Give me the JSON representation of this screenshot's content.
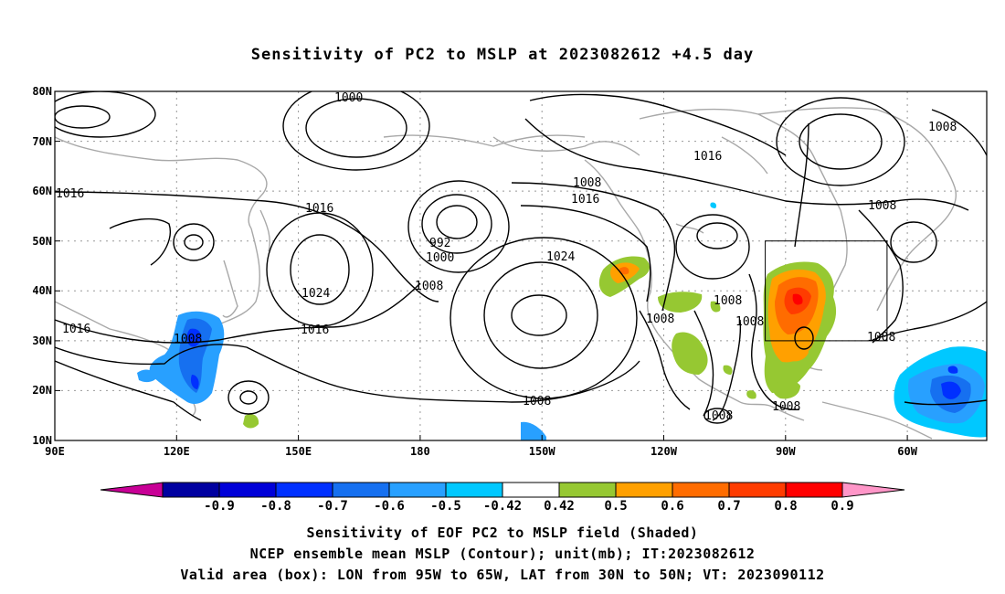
{
  "title": "Sensitivity of PC2 to MSLP at 2023082612 +4.5 day",
  "map": {
    "lat_labels": [
      "80N",
      "70N",
      "60N",
      "50N",
      "40N",
      "30N",
      "20N",
      "10N"
    ],
    "lon_labels": [
      "90E",
      "120E",
      "150E",
      "180",
      "150W",
      "120W",
      "90W",
      "60W"
    ],
    "contour_labels": [
      "1000",
      "992",
      "1000",
      "1008",
      "1008",
      "1016",
      "1016",
      "1016",
      "1024",
      "1024",
      "1016",
      "1016",
      "1008",
      "1008",
      "1008",
      "1008",
      "1008",
      "1008",
      "1008",
      "1008",
      "1008",
      "1008",
      "1016"
    ],
    "valid_box": {
      "lon_from": "95W",
      "lon_to": "65W",
      "lat_from": "30N",
      "lat_to": "50N"
    }
  },
  "colorbar": {
    "labels": [
      "-0.9",
      "-0.8",
      "-0.7",
      "-0.6",
      "-0.5",
      "-0.42",
      "0.42",
      "0.5",
      "0.6",
      "0.7",
      "0.8",
      "0.9"
    ],
    "colors": [
      "#0000a0",
      "#0000d8",
      "#0030ff",
      "#1670f0",
      "#28a0ff",
      "#00c8ff",
      "#ffffff",
      "#96c832",
      "#ffa000",
      "#ff6c00",
      "#ff3c00",
      "#ff0000"
    ],
    "low_end_color": "#c80096",
    "high_end_color": "#ff96c8"
  },
  "captions": [
    "Sensitivity of EOF PC2 to MSLP field (Shaded)",
    "NCEP ensemble mean MSLP (Contour); unit(mb); IT:2023082612",
    "Valid area (box): LON from 95W to 65W, LAT from 30N to 50N; VT: 2023090112"
  ]
}
